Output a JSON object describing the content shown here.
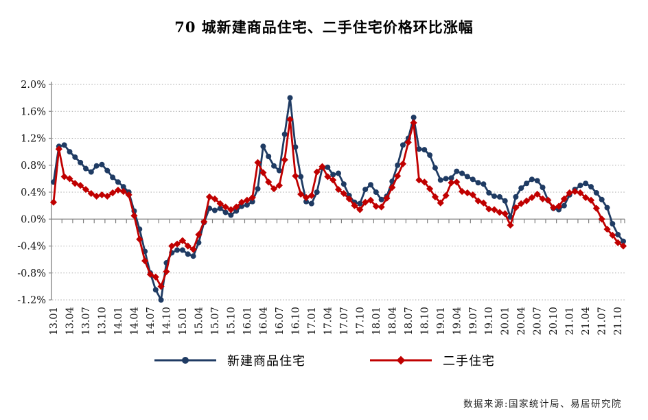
{
  "title": "70 城新建商品住宅、二手住宅价格环比涨幅",
  "source_note": "数据来源:国家统计局、易居研究院",
  "colors": {
    "new_home": "#1f3b63",
    "second_hand": "#c00000",
    "grid": "#a8a8a8",
    "axis": "#808080",
    "label_text": "#111111"
  },
  "chart_data": {
    "type": "line",
    "title": "70 城新建商品住宅、二手住宅价格环比涨幅",
    "ylabel": "",
    "xlabel": "",
    "ylim": [
      -1.2,
      2.0
    ],
    "ytick_step": 0.4,
    "ytick_labels": [
      "2.0%",
      "1.6%",
      "1.2%",
      "0.8%",
      "0.4%",
      "0.0%",
      "-0.4%",
      "-0.8%",
      "-1.2%"
    ],
    "grid": "horizontal-dotted",
    "legend_position": "bottom",
    "xtick_label_every": 3,
    "xtick_mark_every": 2,
    "x": [
      "13.01",
      "13.02",
      "13.03",
      "13.04",
      "13.05",
      "13.06",
      "13.07",
      "13.08",
      "13.09",
      "13.10",
      "13.11",
      "13.12",
      "14.01",
      "14.02",
      "14.03",
      "14.04",
      "14.05",
      "14.06",
      "14.07",
      "14.08",
      "14.09",
      "14.10",
      "14.11",
      "14.12",
      "15.01",
      "15.02",
      "15.03",
      "15.04",
      "15.05",
      "15.06",
      "15.07",
      "15.08",
      "15.09",
      "15.10",
      "15.11",
      "15.12",
      "16.01",
      "16.02",
      "16.03",
      "16.04",
      "16.05",
      "16.06",
      "16.07",
      "16.08",
      "16.09",
      "16.10",
      "16.11",
      "16.12",
      "17.01",
      "17.02",
      "17.03",
      "17.04",
      "17.05",
      "17.06",
      "17.07",
      "17.08",
      "17.09",
      "17.10",
      "17.11",
      "17.12",
      "18.01",
      "18.02",
      "18.03",
      "18.04",
      "18.05",
      "18.06",
      "18.07",
      "18.08",
      "18.09",
      "18.10",
      "18.11",
      "18.12",
      "19.01",
      "19.02",
      "19.03",
      "19.04",
      "19.05",
      "19.06",
      "19.07",
      "19.08",
      "19.09",
      "19.10",
      "19.11",
      "19.12",
      "20.01",
      "20.02",
      "20.03",
      "20.04",
      "20.05",
      "20.06",
      "20.07",
      "20.08",
      "20.09",
      "20.10",
      "20.11",
      "20.12",
      "21.01",
      "21.02",
      "21.03",
      "21.04",
      "21.05",
      "21.06",
      "21.07",
      "21.08",
      "21.09",
      "21.10",
      "21.11"
    ],
    "series": [
      {
        "name": "新建商品住宅",
        "key": "new-home",
        "marker": "circle",
        "color": "#1f3b63",
        "values": [
          0.55,
          1.08,
          1.1,
          1.0,
          0.92,
          0.84,
          0.75,
          0.7,
          0.79,
          0.81,
          0.72,
          0.62,
          0.55,
          0.48,
          0.4,
          0.12,
          -0.15,
          -0.48,
          -0.8,
          -1.05,
          -1.2,
          -0.65,
          -0.5,
          -0.46,
          -0.46,
          -0.52,
          -0.55,
          -0.35,
          -0.05,
          0.16,
          0.13,
          0.16,
          0.1,
          0.06,
          0.12,
          0.19,
          0.21,
          0.26,
          0.45,
          1.08,
          0.93,
          0.79,
          0.72,
          1.26,
          1.8,
          1.07,
          0.63,
          0.26,
          0.23,
          0.4,
          0.76,
          0.77,
          0.66,
          0.68,
          0.52,
          0.35,
          0.25,
          0.23,
          0.44,
          0.51,
          0.4,
          0.29,
          0.34,
          0.56,
          0.8,
          1.1,
          1.2,
          1.51,
          1.04,
          1.03,
          0.95,
          0.76,
          0.58,
          0.6,
          0.61,
          0.71,
          0.68,
          0.63,
          0.59,
          0.54,
          0.52,
          0.39,
          0.34,
          0.33,
          0.27,
          0.03,
          0.33,
          0.46,
          0.53,
          0.59,
          0.57,
          0.47,
          0.28,
          0.16,
          0.14,
          0.2,
          0.36,
          0.44,
          0.5,
          0.53,
          0.48,
          0.39,
          0.29,
          0.17,
          -0.07,
          -0.23,
          -0.33
        ]
      },
      {
        "name": "二手住宅",
        "key": "second-hand",
        "marker": "diamond",
        "color": "#c00000",
        "values": [
          0.25,
          1.04,
          0.63,
          0.6,
          0.53,
          0.5,
          0.44,
          0.38,
          0.34,
          0.36,
          0.34,
          0.39,
          0.43,
          0.41,
          0.36,
          0.05,
          -0.3,
          -0.62,
          -0.82,
          -0.86,
          -1.0,
          -0.78,
          -0.4,
          -0.37,
          -0.32,
          -0.4,
          -0.45,
          -0.23,
          -0.04,
          0.33,
          0.3,
          0.23,
          0.18,
          0.14,
          0.18,
          0.25,
          0.28,
          0.32,
          0.84,
          0.69,
          0.55,
          0.45,
          0.5,
          0.88,
          1.48,
          0.64,
          0.37,
          0.32,
          0.35,
          0.7,
          0.78,
          0.63,
          0.58,
          0.44,
          0.38,
          0.3,
          0.2,
          0.14,
          0.25,
          0.28,
          0.19,
          0.18,
          0.31,
          0.47,
          0.64,
          0.82,
          1.14,
          1.43,
          0.58,
          0.55,
          0.45,
          0.33,
          0.24,
          0.35,
          0.54,
          0.55,
          0.41,
          0.39,
          0.36,
          0.27,
          0.24,
          0.15,
          0.14,
          0.1,
          0.08,
          -0.09,
          0.17,
          0.23,
          0.27,
          0.32,
          0.37,
          0.3,
          0.28,
          0.17,
          0.19,
          0.3,
          0.39,
          0.41,
          0.39,
          0.32,
          0.28,
          0.16,
          0.0,
          -0.15,
          -0.24,
          -0.35,
          -0.4
        ]
      }
    ]
  }
}
